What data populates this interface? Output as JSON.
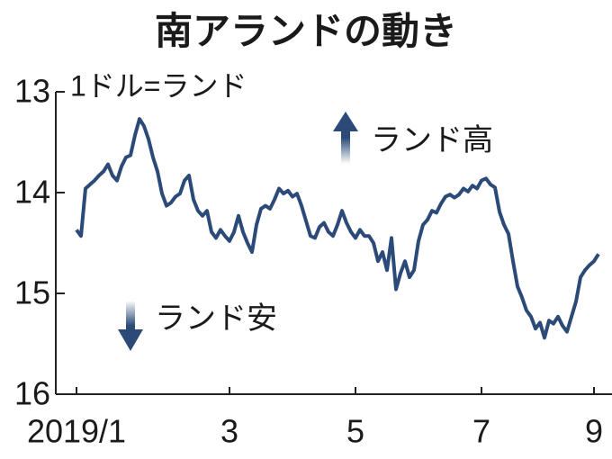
{
  "chart_data": {
    "type": "line",
    "title": "南アランドの動き",
    "y_label": "1ドル=ランド",
    "annotations": [
      "ランド高",
      "ランド安"
    ],
    "categories": [
      "2019/1",
      null,
      null,
      null,
      null,
      null,
      null,
      null,
      null,
      null,
      null,
      null,
      null,
      null,
      null,
      null,
      null,
      null,
      null,
      null,
      null,
      null,
      null,
      null,
      null,
      null,
      null,
      null,
      null,
      null,
      null,
      null,
      null,
      null,
      "3",
      null,
      null,
      null,
      null,
      null,
      null,
      null,
      null,
      null,
      null,
      null,
      null,
      null,
      null,
      null,
      null,
      null,
      null,
      null,
      null,
      null,
      null,
      null,
      null,
      null,
      null,
      null,
      "5",
      null,
      null,
      null,
      null,
      null,
      null,
      null,
      null,
      null,
      null,
      null,
      null,
      null,
      null,
      null,
      null,
      null,
      null,
      null,
      null,
      null,
      null,
      null,
      null,
      null,
      null,
      null,
      "7",
      null,
      null,
      null,
      null,
      null,
      null,
      null,
      null,
      null,
      null,
      null,
      null,
      null,
      null,
      null,
      null,
      null,
      null,
      null,
      null,
      null,
      null,
      null,
      null,
      "9",
      null
    ],
    "series": [
      {
        "name": "1ドル=ランド",
        "color": "#2b4a78",
        "values": [
          14.37,
          14.43,
          13.96,
          13.92,
          13.88,
          13.83,
          13.79,
          13.72,
          13.83,
          13.88,
          13.74,
          13.65,
          13.63,
          13.43,
          13.27,
          13.34,
          13.47,
          13.65,
          13.79,
          14.01,
          14.13,
          14.1,
          14.04,
          14.01,
          13.88,
          13.83,
          14.07,
          14.18,
          14.23,
          14.18,
          14.39,
          14.45,
          14.37,
          14.43,
          14.48,
          14.39,
          14.23,
          14.39,
          14.5,
          14.59,
          14.32,
          14.16,
          14.13,
          14.16,
          14.07,
          13.96,
          14.01,
          13.98,
          14.04,
          14.01,
          14.13,
          14.28,
          14.43,
          14.45,
          14.34,
          14.3,
          14.39,
          14.43,
          14.32,
          14.18,
          14.3,
          14.39,
          14.45,
          14.37,
          14.43,
          14.43,
          14.5,
          14.68,
          14.59,
          14.77,
          14.45,
          14.96,
          14.8,
          14.68,
          14.84,
          14.77,
          14.48,
          14.32,
          14.27,
          14.18,
          14.2,
          14.11,
          14.04,
          14.02,
          14.05,
          14.02,
          13.96,
          13.99,
          13.93,
          13.96,
          13.88,
          13.86,
          13.92,
          13.95,
          14.19,
          14.32,
          14.41,
          14.68,
          14.93,
          15.04,
          15.17,
          15.23,
          15.35,
          15.29,
          15.44,
          15.27,
          15.3,
          15.23,
          15.32,
          15.38,
          15.23,
          15.08,
          14.84,
          14.77,
          14.72,
          14.68,
          14.61
        ]
      }
    ],
    "ylim": [
      13,
      16
    ],
    "yticks": [
      13,
      14,
      15,
      16
    ],
    "y_inverted": true
  }
}
